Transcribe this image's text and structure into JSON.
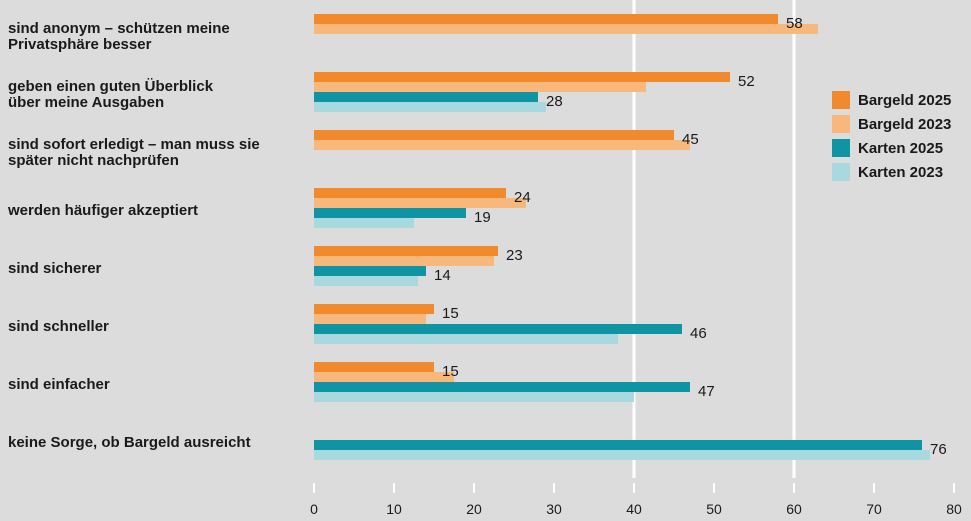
{
  "chart_data": {
    "type": "bar",
    "orientation": "horizontal",
    "categories": [
      [
        "sind anonym – schützen meine",
        "Privatsphäre besser"
      ],
      [
        "geben einen guten Überblick",
        "über meine Ausgaben"
      ],
      [
        "sind sofort erledigt – man muss sie",
        "später nicht nachprüfen"
      ],
      [
        "werden häufiger akzeptiert"
      ],
      [
        "sind sicherer"
      ],
      [
        "sind schneller"
      ],
      [
        "sind einfacher"
      ],
      [
        "keine Sorge, ob Bargeld ausreicht"
      ]
    ],
    "series": [
      {
        "name": "Bargeld 2025",
        "color": "#f08a2c",
        "labeled": true,
        "values": [
          58,
          52,
          45,
          24,
          23,
          15,
          15,
          null
        ]
      },
      {
        "name": "Bargeld 2023",
        "color": "#f8b87c",
        "labeled": false,
        "values": [
          63,
          41.5,
          47,
          26.5,
          22.5,
          14,
          17.5,
          null
        ]
      },
      {
        "name": "Karten 2025",
        "color": "#0e94a3",
        "labeled": true,
        "values": [
          null,
          28,
          null,
          19,
          14,
          46,
          47,
          76
        ]
      },
      {
        "name": "Karten 2023",
        "color": "#a8d9df",
        "labeled": false,
        "values": [
          null,
          29,
          null,
          12.5,
          13,
          38,
          40,
          77
        ]
      }
    ],
    "xlim": [
      0,
      80
    ],
    "xticks": [
      0,
      10,
      20,
      30,
      40,
      50,
      60,
      70,
      80
    ],
    "major_gridlines": [
      40,
      60
    ],
    "legend_position": "right",
    "title": "",
    "xlabel": "",
    "ylabel": ""
  }
}
